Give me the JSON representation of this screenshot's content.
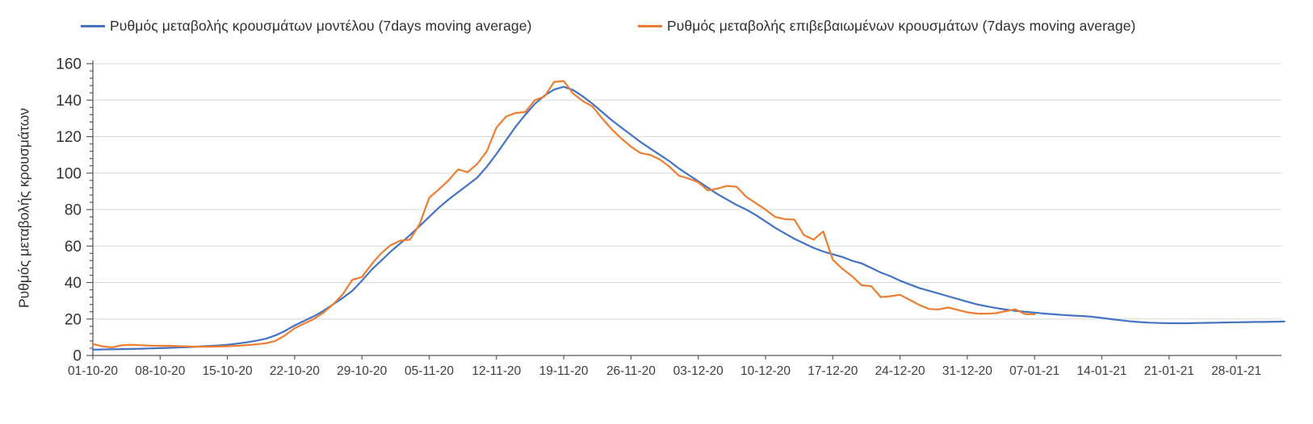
{
  "colors": {
    "axis": "#595959",
    "grid": "#D9D9D9",
    "text": "#333333"
  },
  "chart_data": {
    "type": "line",
    "title": "",
    "xlabel": "",
    "ylabel": "Ρυθμός μεταβολής κρουσμάτων",
    "ylim": [
      0,
      160
    ],
    "ytick_interval": 20,
    "y_minor_divisions": 5,
    "grid": "horizontal-only",
    "legend_position": "top",
    "x_unit": "days (index 0 = 01-10-20, one point per day)",
    "x_ticks": [
      {
        "index": 0,
        "label": "01-10-20"
      },
      {
        "index": 7,
        "label": "08-10-20"
      },
      {
        "index": 14,
        "label": "15-10-20"
      },
      {
        "index": 21,
        "label": "22-10-20"
      },
      {
        "index": 28,
        "label": "29-10-20"
      },
      {
        "index": 35,
        "label": "05-11-20"
      },
      {
        "index": 42,
        "label": "12-11-20"
      },
      {
        "index": 49,
        "label": "19-11-20"
      },
      {
        "index": 56,
        "label": "26-11-20"
      },
      {
        "index": 63,
        "label": "03-12-20"
      },
      {
        "index": 70,
        "label": "10-12-20"
      },
      {
        "index": 77,
        "label": "17-12-20"
      },
      {
        "index": 84,
        "label": "24-12-20"
      },
      {
        "index": 91,
        "label": "31-12-20"
      },
      {
        "index": 98,
        "label": "07-01-21"
      },
      {
        "index": 105,
        "label": "14-01-21"
      },
      {
        "index": 112,
        "label": "21-01-21"
      },
      {
        "index": 119,
        "label": "28-01-21"
      }
    ],
    "series": [
      {
        "name": "Ρυθμός μεταβολής κρουσμάτων μοντέλου (7days moving average)",
        "color": "#4472C4",
        "values": [
          3.2,
          3.3,
          3.4,
          3.5,
          3.6,
          3.7,
          3.9,
          4.0,
          4.2,
          4.4,
          4.6,
          4.9,
          5.2,
          5.5,
          5.9,
          6.5,
          7.2,
          8.1,
          9.2,
          11.0,
          13.5,
          16.5,
          19.0,
          21.5,
          24.5,
          28.0,
          31.5,
          35.5,
          41.0,
          47.0,
          52.0,
          57.0,
          61.5,
          66.0,
          71.0,
          76.0,
          81.0,
          85.5,
          89.5,
          93.5,
          97.5,
          103.5,
          110.5,
          118.0,
          125.5,
          132.0,
          138.0,
          142.5,
          145.8,
          147.3,
          145.5,
          142.0,
          138.0,
          133.5,
          129.0,
          125.0,
          121.0,
          117.0,
          113.5,
          110.0,
          106.5,
          102.5,
          99.0,
          95.5,
          92.0,
          88.5,
          85.5,
          82.5,
          80.0,
          77.0,
          73.5,
          70.0,
          67.0,
          64.0,
          61.5,
          59.0,
          57.0,
          55.5,
          54.0,
          52.0,
          50.5,
          48.0,
          45.5,
          43.5,
          41.0,
          39.0,
          37.0,
          35.5,
          34.0,
          32.5,
          31.0,
          29.5,
          28.0,
          27.0,
          26.0,
          25.2,
          24.5,
          24.0,
          23.5,
          23.0,
          22.6,
          22.2,
          21.9,
          21.6,
          21.2,
          20.6,
          19.9,
          19.3,
          18.7,
          18.3,
          18.0,
          17.8,
          17.7,
          17.7,
          17.7,
          17.8,
          17.9,
          18.0,
          18.1,
          18.2,
          18.3,
          18.4,
          18.4,
          18.5,
          18.6
        ]
      },
      {
        "name": "Ρυθμός μεταβολής επιβεβαιωμένων κρουσμάτων (7days moving average)",
        "color": "#ED7D31",
        "values": [
          6.3,
          5.0,
          4.4,
          5.6,
          5.9,
          5.6,
          5.4,
          5.3,
          5.3,
          5.1,
          4.9,
          4.8,
          4.8,
          4.9,
          5.1,
          5.3,
          5.7,
          6.1,
          6.7,
          8.0,
          11.0,
          15.0,
          17.5,
          20.0,
          23.5,
          28.0,
          33.5,
          41.5,
          43.0,
          50.0,
          56.0,
          60.5,
          63.0,
          63.5,
          72.0,
          86.5,
          91.0,
          96.0,
          102.0,
          100.5,
          105.0,
          112.0,
          125.0,
          131.0,
          133.0,
          133.5,
          140.0,
          142.0,
          150.0,
          150.5,
          143.5,
          139.5,
          136.5,
          130.0,
          124.0,
          119.0,
          114.5,
          111.0,
          110.0,
          107.5,
          103.5,
          98.5,
          97.0,
          95.0,
          90.5,
          91.5,
          93.0,
          92.5,
          87.0,
          83.5,
          80.0,
          76.0,
          74.8,
          74.5,
          66.0,
          63.5,
          68.0,
          52.5,
          47.5,
          43.5,
          38.5,
          38.0,
          32.0,
          32.5,
          33.3,
          30.5,
          27.7,
          25.5,
          25.3,
          26.3,
          25.0,
          23.7,
          23.0,
          22.9,
          23.2,
          24.3,
          25.3,
          22.7,
          22.6
        ]
      }
    ]
  }
}
